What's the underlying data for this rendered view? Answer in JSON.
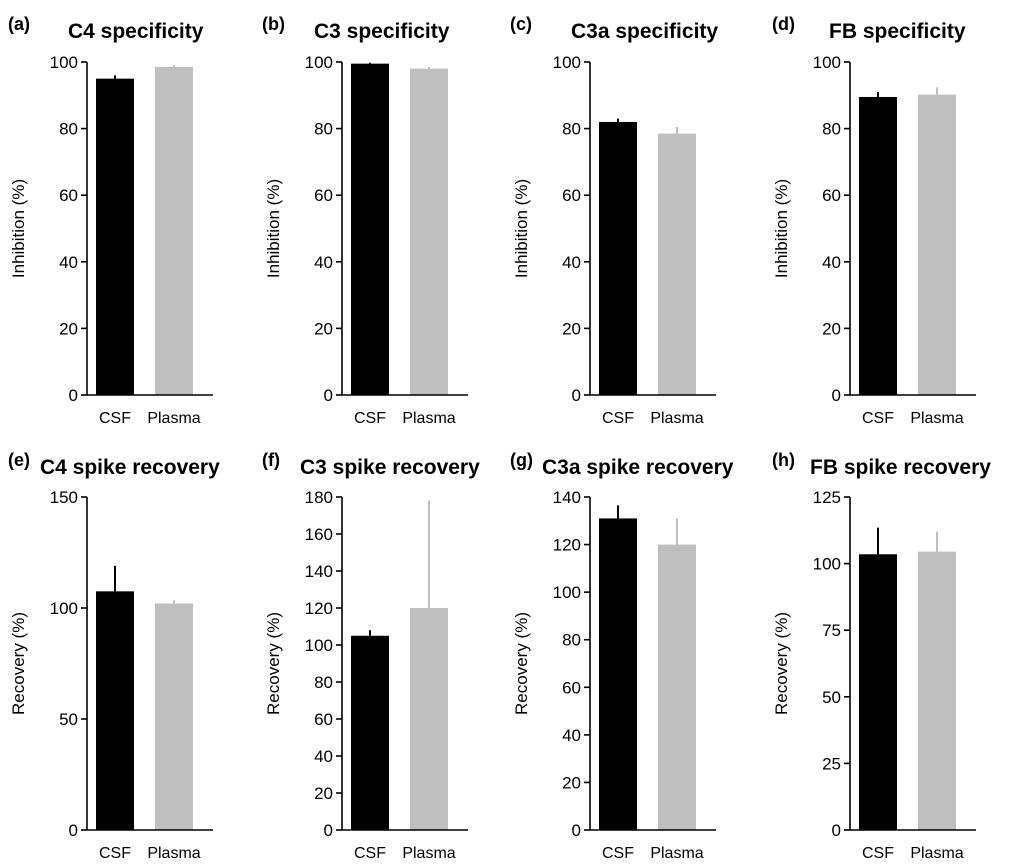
{
  "chart_data": [
    {
      "panel": "(a)",
      "type": "bar",
      "title": "C4 specificity",
      "ylabel": "Inhibition (%)",
      "categories": [
        "CSF",
        "Plasma"
      ],
      "values": [
        95,
        98.5
      ],
      "errors": [
        1,
        0.5
      ],
      "ylim": [
        0,
        100
      ],
      "yticks": [
        0,
        20,
        40,
        60,
        80,
        100
      ],
      "bar_colors": [
        "#000000",
        "#bfbfbf"
      ]
    },
    {
      "panel": "(b)",
      "type": "bar",
      "title": "C3 specificity",
      "ylabel": "Inhibition (%)",
      "categories": [
        "CSF",
        "Plasma"
      ],
      "values": [
        99.5,
        98
      ],
      "errors": [
        0.3,
        0.5
      ],
      "ylim": [
        0,
        100
      ],
      "yticks": [
        0,
        20,
        40,
        60,
        80,
        100
      ],
      "bar_colors": [
        "#000000",
        "#bfbfbf"
      ]
    },
    {
      "panel": "(c)",
      "type": "bar",
      "title": "C3a specificity",
      "ylabel": "Inhibition (%)",
      "categories": [
        "CSF",
        "Plasma"
      ],
      "values": [
        82,
        78.5
      ],
      "errors": [
        1,
        2
      ],
      "ylim": [
        0,
        100
      ],
      "yticks": [
        0,
        20,
        40,
        60,
        80,
        100
      ],
      "bar_colors": [
        "#000000",
        "#bfbfbf"
      ]
    },
    {
      "panel": "(d)",
      "type": "bar",
      "title": "FB specificity",
      "ylabel": "Inhibition (%)",
      "categories": [
        "CSF",
        "Plasma"
      ],
      "values": [
        89.5,
        90.2
      ],
      "errors": [
        1.5,
        2.2
      ],
      "ylim": [
        0,
        100
      ],
      "yticks": [
        0,
        20,
        40,
        60,
        80,
        100
      ],
      "bar_colors": [
        "#000000",
        "#bfbfbf"
      ]
    },
    {
      "panel": "(e)",
      "type": "bar",
      "title": "C4 spike recovery",
      "ylabel": "Recovery (%)",
      "categories": [
        "CSF",
        "Plasma"
      ],
      "values": [
        107.5,
        102
      ],
      "errors": [
        11.5,
        1.5
      ],
      "ylim": [
        0,
        150
      ],
      "yticks": [
        0,
        50,
        100,
        150
      ],
      "bar_colors": [
        "#000000",
        "#bfbfbf"
      ]
    },
    {
      "panel": "(f)",
      "type": "bar",
      "title": "C3 spike recovery",
      "ylabel": "Recovery (%)",
      "categories": [
        "CSF",
        "Plasma"
      ],
      "values": [
        105,
        120
      ],
      "errors": [
        3,
        58
      ],
      "ylim": [
        0,
        180
      ],
      "yticks": [
        0,
        20,
        40,
        60,
        80,
        100,
        120,
        140,
        160,
        180
      ],
      "bar_colors": [
        "#000000",
        "#bfbfbf"
      ]
    },
    {
      "panel": "(g)",
      "type": "bar",
      "title": "C3a spike recovery",
      "ylabel": "Recovery (%)",
      "categories": [
        "CSF",
        "Plasma"
      ],
      "values": [
        131,
        120
      ],
      "errors": [
        5.5,
        11
      ],
      "ylim": [
        0,
        140
      ],
      "yticks": [
        0,
        20,
        40,
        60,
        80,
        100,
        120,
        140
      ],
      "bar_colors": [
        "#000000",
        "#bfbfbf"
      ]
    },
    {
      "panel": "(h)",
      "type": "bar",
      "title": "FB spike recovery",
      "ylabel": "Recovery (%)",
      "categories": [
        "CSF",
        "Plasma"
      ],
      "values": [
        103.5,
        104.5
      ],
      "errors": [
        10,
        7.5
      ],
      "ylim": [
        0,
        125
      ],
      "yticks": [
        0,
        25,
        50,
        75,
        100,
        125
      ],
      "bar_colors": [
        "#000000",
        "#bfbfbf"
      ]
    }
  ]
}
